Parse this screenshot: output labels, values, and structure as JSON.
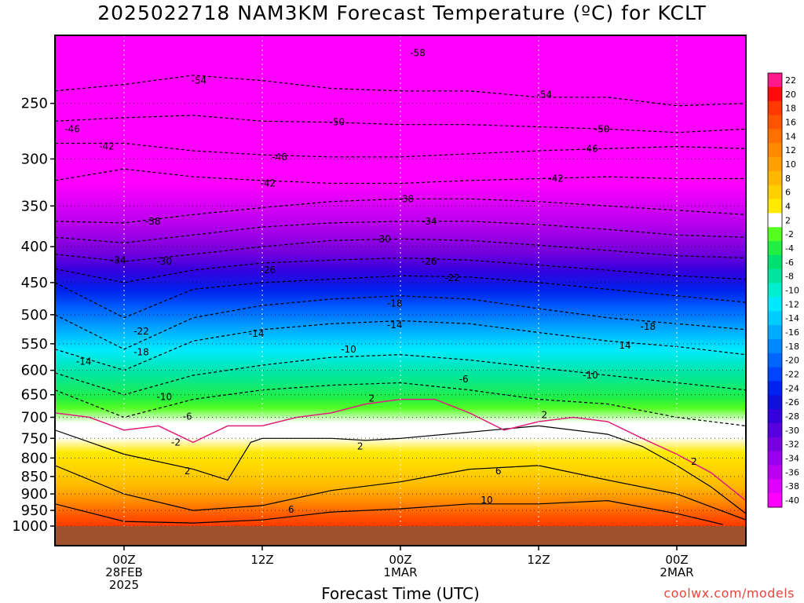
{
  "title": "2025022718 NAM3KM Forecast Temperature (ºC) for KCLT",
  "credit": "coolwx.com/models",
  "chart_data": {
    "type": "heatmap",
    "title": "2025022718 NAM3KM Forecast Temperature (ºC) for KCLT",
    "xlabel": "Forecast Time (UTC)",
    "ylabel": "",
    "x_ticks": [
      {
        "lines": [
          "00Z",
          "28FEB",
          "2025"
        ],
        "hours": 6
      },
      {
        "lines": [
          "12Z"
        ],
        "hours": 18
      },
      {
        "lines": [
          "00Z",
          "1MAR"
        ],
        "hours": 30
      },
      {
        "lines": [
          "12Z"
        ],
        "hours": 42
      },
      {
        "lines": [
          "00Z",
          "2MAR"
        ],
        "hours": 54
      }
    ],
    "xlim_hours": [
      0,
      60
    ],
    "y_ticks_hpa": [
      250,
      300,
      350,
      400,
      450,
      500,
      550,
      600,
      650,
      700,
      750,
      800,
      850,
      900,
      950,
      1000
    ],
    "ylim_hpa": [
      200,
      1000
    ],
    "y_scale": "log-pressure",
    "grid": "dotted",
    "colorbar": {
      "placement": "right",
      "levels": [
        22,
        20,
        18,
        16,
        14,
        12,
        10,
        8,
        6,
        4,
        2,
        -2,
        -4,
        -6,
        -8,
        -10,
        -12,
        -14,
        -16,
        -18,
        -20,
        -22,
        -24,
        -26,
        -28,
        -30,
        -32,
        -34,
        -36,
        -38,
        -40
      ],
      "colors": [
        "#ff1a8c",
        "#ff0a0a",
        "#ff3a00",
        "#ff5500",
        "#ff7000",
        "#ff8a00",
        "#ffa000",
        "#ffb800",
        "#ffd000",
        "#ffea00",
        "#ffffff",
        "#55ff22",
        "#22ee44",
        "#00e070",
        "#00e6a0",
        "#00eed0",
        "#00eaff",
        "#00ccff",
        "#00aaff",
        "#0088ff",
        "#0066ff",
        "#0044ff",
        "#0022ee",
        "#1010dd",
        "#3300dd",
        "#5500dd",
        "#7700dd",
        "#9900ee",
        "#bb00ee",
        "#dd00ff",
        "#ff00ff"
      ]
    },
    "ground_color": "#a0522d",
    "isotherm_levels_c": [
      -58,
      -54,
      -50,
      -46,
      -42,
      -38,
      -34,
      -30,
      -26,
      -22,
      -18,
      -14,
      -10,
      -6,
      -2,
      2,
      6,
      10
    ],
    "freezing_line_color": "#e0207a",
    "freezing_level_hpa": [
      [
        0,
        690
      ],
      [
        3,
        700
      ],
      [
        6,
        730
      ],
      [
        9,
        720
      ],
      [
        12,
        760
      ],
      [
        15,
        720
      ],
      [
        18,
        720
      ],
      [
        21,
        700
      ],
      [
        24,
        690
      ],
      [
        27,
        670
      ],
      [
        30,
        660
      ],
      [
        33,
        660
      ],
      [
        36,
        690
      ],
      [
        39,
        730
      ],
      [
        42,
        710
      ],
      [
        45,
        700
      ],
      [
        48,
        710
      ],
      [
        51,
        750
      ],
      [
        54,
        790
      ],
      [
        57,
        840
      ],
      [
        60,
        920
      ]
    ],
    "contours": [
      {
        "level": -54,
        "points": [
          [
            0,
            240
          ],
          [
            6,
            235
          ],
          [
            12,
            228
          ],
          [
            18,
            232
          ],
          [
            24,
            238
          ],
          [
            30,
            240
          ],
          [
            36,
            240
          ],
          [
            42,
            245
          ],
          [
            48,
            245
          ],
          [
            54,
            252
          ],
          [
            60,
            250
          ]
        ]
      },
      {
        "level": -50,
        "points": [
          [
            0,
            265
          ],
          [
            6,
            262
          ],
          [
            12,
            260
          ],
          [
            18,
            265
          ],
          [
            24,
            266
          ],
          [
            30,
            268
          ],
          [
            36,
            268
          ],
          [
            42,
            270
          ],
          [
            48,
            272
          ],
          [
            54,
            275
          ],
          [
            60,
            272
          ]
        ]
      },
      {
        "level": -46,
        "points": [
          [
            0,
            285
          ],
          [
            6,
            285
          ],
          [
            12,
            292
          ],
          [
            18,
            296
          ],
          [
            24,
            298
          ],
          [
            30,
            298
          ],
          [
            36,
            295
          ],
          [
            42,
            292
          ],
          [
            48,
            290
          ],
          [
            54,
            288
          ],
          [
            60,
            290
          ]
        ]
      },
      {
        "level": -42,
        "points": [
          [
            0,
            322
          ],
          [
            6,
            310
          ],
          [
            12,
            318
          ],
          [
            18,
            322
          ],
          [
            24,
            325
          ],
          [
            30,
            325
          ],
          [
            36,
            322
          ],
          [
            42,
            320
          ],
          [
            48,
            318
          ],
          [
            54,
            320
          ],
          [
            60,
            320
          ]
        ]
      },
      {
        "level": -38,
        "points": [
          [
            0,
            368
          ],
          [
            6,
            370
          ],
          [
            12,
            360
          ],
          [
            18,
            352
          ],
          [
            24,
            345
          ],
          [
            30,
            342
          ],
          [
            36,
            342
          ],
          [
            42,
            345
          ],
          [
            48,
            350
          ],
          [
            54,
            355
          ],
          [
            60,
            360
          ]
        ]
      },
      {
        "level": -34,
        "points": [
          [
            0,
            388
          ],
          [
            6,
            395
          ],
          [
            12,
            385
          ],
          [
            18,
            375
          ],
          [
            24,
            370
          ],
          [
            30,
            368
          ],
          [
            36,
            368
          ],
          [
            42,
            372
          ],
          [
            48,
            378
          ],
          [
            54,
            385
          ],
          [
            60,
            388
          ]
        ]
      },
      {
        "level": -30,
        "points": [
          [
            0,
            410
          ],
          [
            6,
            420
          ],
          [
            12,
            410
          ],
          [
            18,
            400
          ],
          [
            24,
            392
          ],
          [
            30,
            390
          ],
          [
            36,
            392
          ],
          [
            42,
            398
          ],
          [
            48,
            405
          ],
          [
            54,
            412
          ],
          [
            60,
            415
          ]
        ]
      },
      {
        "level": -26,
        "points": [
          [
            0,
            430
          ],
          [
            6,
            450
          ],
          [
            12,
            432
          ],
          [
            18,
            422
          ],
          [
            24,
            418
          ],
          [
            30,
            415
          ],
          [
            36,
            418
          ],
          [
            42,
            425
          ],
          [
            48,
            432
          ],
          [
            54,
            440
          ],
          [
            60,
            445
          ]
        ]
      },
      {
        "level": -22,
        "points": [
          [
            0,
            450
          ],
          [
            6,
            505
          ],
          [
            12,
            460
          ],
          [
            18,
            450
          ],
          [
            24,
            445
          ],
          [
            30,
            440
          ],
          [
            36,
            442
          ],
          [
            42,
            450
          ],
          [
            48,
            460
          ],
          [
            54,
            470
          ],
          [
            60,
            480
          ]
        ]
      },
      {
        "level": -18,
        "points": [
          [
            0,
            500
          ],
          [
            6,
            560
          ],
          [
            12,
            505
          ],
          [
            18,
            485
          ],
          [
            24,
            475
          ],
          [
            30,
            470
          ],
          [
            36,
            475
          ],
          [
            42,
            490
          ],
          [
            48,
            505
          ],
          [
            54,
            515
          ],
          [
            60,
            525
          ]
        ]
      },
      {
        "level": -14,
        "points": [
          [
            0,
            560
          ],
          [
            6,
            600
          ],
          [
            12,
            545
          ],
          [
            18,
            525
          ],
          [
            24,
            515
          ],
          [
            30,
            510
          ],
          [
            36,
            515
          ],
          [
            42,
            530
          ],
          [
            48,
            545
          ],
          [
            54,
            555
          ],
          [
            60,
            570
          ]
        ]
      },
      {
        "level": -10,
        "points": [
          [
            0,
            605
          ],
          [
            6,
            650
          ],
          [
            12,
            610
          ],
          [
            18,
            590
          ],
          [
            24,
            575
          ],
          [
            30,
            570
          ],
          [
            36,
            580
          ],
          [
            42,
            595
          ],
          [
            48,
            610
          ],
          [
            54,
            625
          ],
          [
            60,
            640
          ]
        ]
      },
      {
        "level": -6,
        "points": [
          [
            0,
            640
          ],
          [
            6,
            700
          ],
          [
            12,
            660
          ],
          [
            18,
            640
          ],
          [
            24,
            630
          ],
          [
            30,
            625
          ],
          [
            36,
            640
          ],
          [
            42,
            660
          ],
          [
            48,
            670
          ],
          [
            54,
            700
          ],
          [
            60,
            720
          ]
        ]
      },
      {
        "level": 2,
        "points": [
          [
            0,
            730
          ],
          [
            6,
            790
          ],
          [
            12,
            830
          ],
          [
            15,
            860
          ],
          [
            17,
            760
          ],
          [
            18,
            750
          ],
          [
            24,
            750
          ],
          [
            27,
            755
          ],
          [
            30,
            750
          ],
          [
            36,
            735
          ],
          [
            42,
            720
          ],
          [
            48,
            740
          ],
          [
            51,
            770
          ],
          [
            54,
            820
          ],
          [
            57,
            880
          ],
          [
            60,
            960
          ]
        ]
      },
      {
        "level": 6,
        "points": [
          [
            0,
            820
          ],
          [
            6,
            900
          ],
          [
            12,
            950
          ],
          [
            18,
            935
          ],
          [
            24,
            890
          ],
          [
            30,
            865
          ],
          [
            36,
            830
          ],
          [
            42,
            820
          ],
          [
            48,
            860
          ],
          [
            54,
            900
          ],
          [
            60,
            980
          ]
        ]
      },
      {
        "level": 10,
        "points": [
          [
            0,
            930
          ],
          [
            6,
            985
          ],
          [
            12,
            990
          ],
          [
            18,
            980
          ],
          [
            24,
            955
          ],
          [
            30,
            945
          ],
          [
            36,
            930
          ],
          [
            42,
            930
          ],
          [
            48,
            920
          ],
          [
            54,
            960
          ],
          [
            58,
            995
          ]
        ]
      }
    ],
    "contour_labels": [
      {
        "text": "-58",
        "hours": 31.5,
        "hpa": 212
      },
      {
        "text": "-54",
        "hours": 12.5,
        "hpa": 232
      },
      {
        "text": "-54",
        "hours": 42.5,
        "hpa": 243
      },
      {
        "text": "-46",
        "hours": 1.5,
        "hpa": 272
      },
      {
        "text": "-50",
        "hours": 24.5,
        "hpa": 266
      },
      {
        "text": "-50",
        "hours": 47.5,
        "hpa": 272
      },
      {
        "text": "-42",
        "hours": 4.5,
        "hpa": 288
      },
      {
        "text": "-46",
        "hours": 19.5,
        "hpa": 298
      },
      {
        "text": "-46",
        "hours": 46.5,
        "hpa": 290
      },
      {
        "text": "-42",
        "hours": 18.5,
        "hpa": 325
      },
      {
        "text": "-42",
        "hours": 43.5,
        "hpa": 320
      },
      {
        "text": "-38",
        "hours": 30.5,
        "hpa": 342
      },
      {
        "text": "-38",
        "hours": 8.5,
        "hpa": 368
      },
      {
        "text": "-34",
        "hours": 32.5,
        "hpa": 368
      },
      {
        "text": "-30",
        "hours": 28.5,
        "hpa": 390
      },
      {
        "text": "-34",
        "hours": 5.5,
        "hpa": 418
      },
      {
        "text": "-30",
        "hours": 9.5,
        "hpa": 420
      },
      {
        "text": "-26",
        "hours": 18.5,
        "hpa": 432
      },
      {
        "text": "-26",
        "hours": 32.5,
        "hpa": 420
      },
      {
        "text": "-22",
        "hours": 34.5,
        "hpa": 443
      },
      {
        "text": "-18",
        "hours": 29.5,
        "hpa": 482
      },
      {
        "text": "-14",
        "hours": 29.5,
        "hpa": 517
      },
      {
        "text": "-22",
        "hours": 7.5,
        "hpa": 528
      },
      {
        "text": "-14",
        "hours": 17.5,
        "hpa": 532
      },
      {
        "text": "-18",
        "hours": 51.5,
        "hpa": 520
      },
      {
        "text": "-18",
        "hours": 7.5,
        "hpa": 565
      },
      {
        "text": "14",
        "hours": 49.5,
        "hpa": 553
      },
      {
        "text": "-14",
        "hours": 2.5,
        "hpa": 583
      },
      {
        "text": "-10",
        "hours": 25.5,
        "hpa": 560
      },
      {
        "text": "-10",
        "hours": 46.5,
        "hpa": 610
      },
      {
        "text": "-6",
        "hours": 35.5,
        "hpa": 618
      },
      {
        "text": "-10",
        "hours": 9.5,
        "hpa": 655
      },
      {
        "text": "2",
        "hours": 27.5,
        "hpa": 658
      },
      {
        "text": "-6",
        "hours": 11.5,
        "hpa": 698
      },
      {
        "text": "2",
        "hours": 42.5,
        "hpa": 695
      },
      {
        "text": "-2",
        "hours": 10.5,
        "hpa": 760
      },
      {
        "text": "2",
        "hours": 26.5,
        "hpa": 770
      },
      {
        "text": "2",
        "hours": 55.5,
        "hpa": 810
      },
      {
        "text": "2",
        "hours": 11.5,
        "hpa": 835
      },
      {
        "text": "6",
        "hours": 38.5,
        "hpa": 835
      },
      {
        "text": "10",
        "hours": 37.5,
        "hpa": 918
      },
      {
        "text": "6",
        "hours": 20.5,
        "hpa": 947
      }
    ]
  }
}
